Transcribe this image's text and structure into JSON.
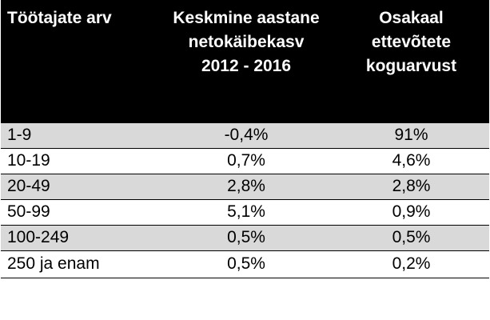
{
  "table": {
    "headers": [
      {
        "lines": [
          "Töötajate arv"
        ]
      },
      {
        "lines": [
          "Keskmine aastane",
          "netokäibekasv",
          "2012 - 2016"
        ]
      },
      {
        "lines": [
          "Osakaal",
          "ettevõtete",
          "koguarvust"
        ]
      }
    ],
    "rows": [
      {
        "size": "1-9",
        "growth": "-0,4%",
        "share": "91%"
      },
      {
        "size": "10-19",
        "growth": "0,7%",
        "share": "4,6%"
      },
      {
        "size": "20-49",
        "growth": "2,8%",
        "share": "2,8%"
      },
      {
        "size": "50-99",
        "growth": "5,1%",
        "share": "0,9%"
      },
      {
        "size": "100-249",
        "growth": "0,5%",
        "share": "0,5%"
      },
      {
        "size": "250 ja enam",
        "growth": "0,5%",
        "share": "0,2%"
      }
    ]
  },
  "colors": {
    "header_bg": "#000000",
    "header_text": "#ffffff",
    "shaded_row": "#d9d9d9",
    "plain_row": "#ffffff"
  }
}
